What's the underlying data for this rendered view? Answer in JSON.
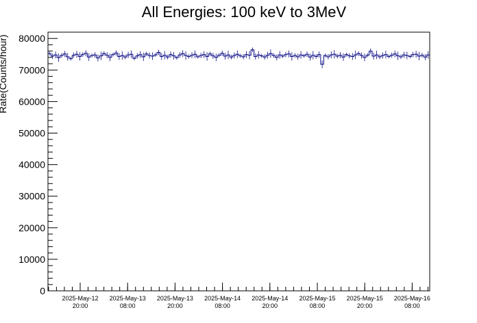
{
  "chart_data": {
    "type": "line",
    "title": "All Energies:  100 keV to 3MeV",
    "xlabel": "",
    "ylabel": "Rate(Counts/hour)",
    "ylim": [
      0,
      82000
    ],
    "xlim_hours": "2025-May-12 ~12:00 to 2025-May-16 ~13:00",
    "grid": false,
    "legend": "none",
    "series_color": "#000080",
    "y_ticks": [
      "0",
      "10000",
      "20000",
      "30000",
      "40000",
      "50000",
      "60000",
      "70000",
      "80000"
    ],
    "x_ticks": [
      {
        "date": "2025-May-12",
        "time": "20:00"
      },
      {
        "date": "2025-May-13",
        "time": "08:00"
      },
      {
        "date": "2025-May-13",
        "time": "20:00"
      },
      {
        "date": "2025-May-14",
        "time": "08:00"
      },
      {
        "date": "2025-May-14",
        "time": "20:00"
      },
      {
        "date": "2025-May-15",
        "time": "08:00"
      },
      {
        "date": "2025-May-15",
        "time": "20:00"
      },
      {
        "date": "2025-May-16",
        "time": "08:00"
      }
    ],
    "series": [
      {
        "values_summary": {
          "mean": 74500,
          "min": 71000,
          "max": 77500
        },
        "values": [
          75200,
          74400,
          74800,
          73900,
          74600,
          75100,
          74200,
          73600,
          74700,
          75000,
          74300,
          74900,
          75300,
          74100,
          74600,
          74800,
          73800,
          74500,
          75200,
          74700,
          74000,
          74900,
          75400,
          74300,
          74600,
          74100,
          74800,
          75000,
          73700,
          74500,
          74900,
          74200,
          75100,
          74600,
          74400,
          74800,
          75600,
          74300,
          74700,
          74100,
          74900,
          74500,
          73900,
          74800,
          75200,
          74600,
          74300,
          74700,
          75000,
          74200,
          74600,
          74900,
          74300,
          75100,
          74500,
          74000,
          74700,
          75300,
          74400,
          74800,
          74100,
          74600,
          75000,
          74500,
          74200,
          74900,
          74700,
          76400,
          74300,
          74800,
          74500,
          74100,
          74700,
          75200,
          74600,
          74000,
          74800,
          74400,
          74900,
          75100,
          74300,
          74600,
          74200,
          74800,
          74500,
          75000,
          74100,
          74700,
          74300,
          74900,
          71800,
          74600,
          74200,
          74800,
          75000,
          74400,
          74700,
          74100,
          74900,
          74500,
          74300,
          74800,
          75200,
          74600,
          74000,
          74700,
          76000,
          74400,
          74800,
          74200,
          74600,
          74900,
          74300,
          74700,
          75100,
          74500,
          74200,
          74800,
          74600,
          74300,
          74900,
          75000,
          74400,
          74700,
          74100,
          74800
        ]
      }
    ]
  }
}
